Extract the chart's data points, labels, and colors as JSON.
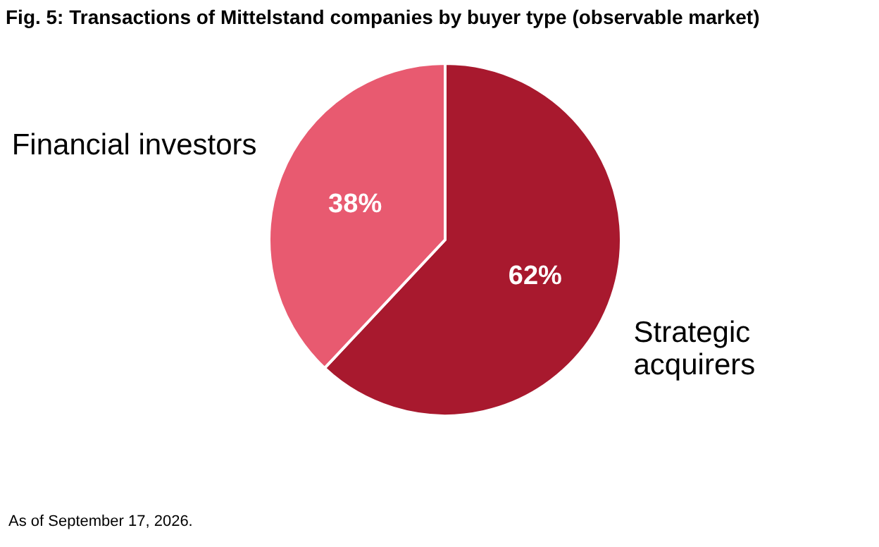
{
  "chart_data": {
    "type": "pie",
    "title": "Fig. 5: Transactions of Mittelstand companies by buyer type (observable market)",
    "categories": [
      "Strategic acquirers",
      "Financial investors"
    ],
    "values": [
      62,
      38
    ],
    "colors": [
      "#a8192e",
      "#e85a70"
    ],
    "value_labels": [
      "62%",
      "38%"
    ],
    "annotations": [
      "As of September 17, 2026."
    ]
  }
}
